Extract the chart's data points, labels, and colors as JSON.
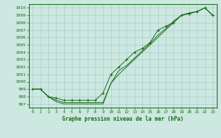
{
  "title": "Graphe pression niveau de la mer (hPa)",
  "background_color": "#cce8e0",
  "grid_color": "#aacccc",
  "line_color": "#1a6b1a",
  "xlim": [
    -0.5,
    23.5
  ],
  "ylim": [
    996.5,
    1010.5
  ],
  "yticks": [
    997,
    998,
    999,
    1000,
    1001,
    1002,
    1003,
    1004,
    1005,
    1006,
    1007,
    1008,
    1009,
    1010
  ],
  "xticks": [
    0,
    1,
    2,
    3,
    4,
    5,
    6,
    7,
    8,
    9,
    10,
    11,
    12,
    13,
    14,
    15,
    16,
    17,
    18,
    19,
    20,
    21,
    22,
    23
  ],
  "series1_x": [
    0,
    1,
    2,
    3,
    4,
    5,
    6,
    7,
    8,
    9,
    10,
    11,
    12,
    13,
    14,
    15,
    16,
    17,
    18,
    19,
    20,
    21,
    22,
    23
  ],
  "series1_y": [
    999.0,
    999.0,
    998.0,
    997.5,
    997.2,
    997.2,
    997.2,
    997.2,
    997.2,
    997.2,
    999.8,
    1001.5,
    1002.2,
    1003.2,
    1004.2,
    1005.2,
    1006.3,
    1007.2,
    1008.2,
    1009.0,
    1009.3,
    1009.5,
    1010.0,
    1009.0
  ],
  "series2_x": [
    0,
    1,
    2,
    3,
    4,
    5,
    6,
    7,
    8,
    9,
    10,
    11,
    12,
    13,
    14,
    15,
    16,
    17,
    18,
    19,
    20,
    21,
    22,
    23
  ],
  "series2_y": [
    999.0,
    999.0,
    998.0,
    997.8,
    997.5,
    997.5,
    997.5,
    997.5,
    997.5,
    998.5,
    1001.0,
    1002.0,
    1003.0,
    1004.0,
    1004.5,
    1005.3,
    1007.0,
    1007.5,
    1008.0,
    1009.0,
    1009.2,
    1009.5,
    1010.0,
    1009.0
  ],
  "series3_x": [
    0,
    1,
    2,
    3,
    4,
    5,
    6,
    7,
    8,
    9,
    10,
    11,
    12,
    13,
    14,
    15,
    16,
    17,
    18,
    19,
    20,
    21,
    22,
    23
  ],
  "series3_y": [
    999.0,
    999.0,
    998.0,
    997.3,
    997.0,
    997.0,
    997.0,
    997.0,
    997.0,
    997.0,
    999.8,
    1001.0,
    1002.0,
    1003.0,
    1004.0,
    1005.0,
    1006.0,
    1007.0,
    1008.0,
    1009.0,
    1009.3,
    1009.5,
    1010.0,
    1009.0
  ]
}
